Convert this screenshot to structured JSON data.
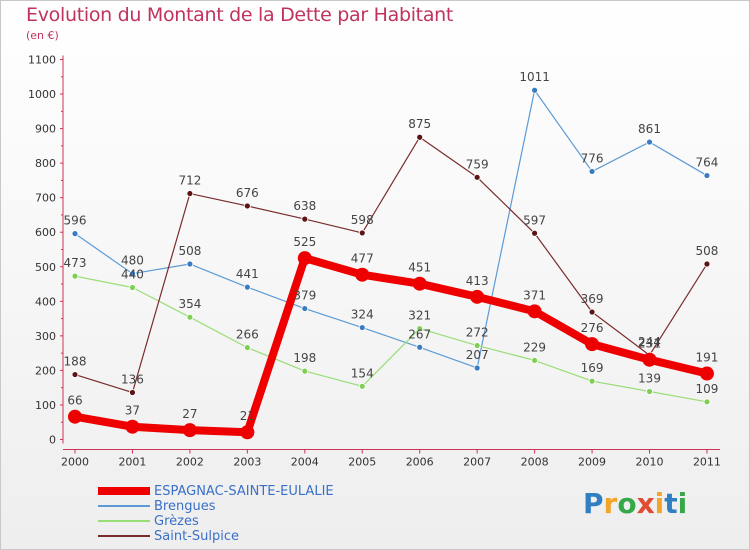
{
  "title": "Evolution du Montant de la Dette par Habitant",
  "subtitle": "(en €)",
  "logo": {
    "text": "Proxiti",
    "letters": [
      {
        "ch": "P",
        "color": "#2f7fc2"
      },
      {
        "ch": "r",
        "color": "#f2a629"
      },
      {
        "ch": "o",
        "color": "#37a84a"
      },
      {
        "ch": "x",
        "color": "#e14b33"
      },
      {
        "ch": "i",
        "color": "#f2a629"
      },
      {
        "ch": "t",
        "color": "#2f7fc2"
      },
      {
        "ch": "i",
        "color": "#37a84a"
      }
    ]
  },
  "chart_data": {
    "type": "line",
    "title": "Evolution du Montant de la Dette par Habitant",
    "ylabel": "(en €)",
    "ylim": [
      0,
      1100
    ],
    "yticks": [
      0,
      100,
      200,
      300,
      400,
      500,
      600,
      700,
      800,
      900,
      1000,
      1100
    ],
    "categories": [
      "2000",
      "2001",
      "2002",
      "2003",
      "2004",
      "2005",
      "2006",
      "2007",
      "2008",
      "2009",
      "2010",
      "2011"
    ],
    "grid": false,
    "legend_position": "bottom-left",
    "series": [
      {
        "name": "Brengues",
        "color": "#5b9bd5",
        "marker": "#3a7cc0",
        "width": 1.2,
        "values": [
          596,
          480,
          508,
          441,
          379,
          324,
          267,
          207,
          1011,
          776,
          861,
          764
        ]
      },
      {
        "name": "Grèzes",
        "color": "#99dd77",
        "marker": "#7fcf55",
        "width": 1.2,
        "values": [
          473,
          440,
          354,
          266,
          198,
          154,
          321,
          272,
          229,
          169,
          139,
          109
        ]
      },
      {
        "name": "Saint-Sulpice",
        "color": "#7a2c2c",
        "marker": "#5c1414",
        "width": 1.2,
        "values": [
          188,
          136,
          712,
          676,
          638,
          598,
          875,
          759,
          597,
          369,
          244,
          508
        ]
      },
      {
        "name": "ESPAGNAC-SAINTE-EULALIE",
        "color": "#ee0000",
        "marker": "#ee0000",
        "width": 8,
        "values": [
          66,
          37,
          27,
          21,
          525,
          477,
          451,
          413,
          371,
          276,
          231,
          191
        ]
      }
    ],
    "legend_order": [
      "ESPAGNAC-SAINTE-EULALIE",
      "Brengues",
      "Grèzes",
      "Saint-Sulpice"
    ],
    "data_label_strings": {
      "ESPAGNAC-SAINTE-EULALIE": [
        "66",
        "37",
        "27",
        "21",
        "525",
        "477",
        "451",
        "413",
        "371",
        "276",
        "231",
        "191"
      ],
      "Brengues": [
        "596",
        "480",
        "508",
        "441",
        "379",
        "324",
        "267",
        "207",
        "1011",
        "776",
        "861",
        "764"
      ],
      "Grèzes": [
        "473",
        "440",
        "354",
        "266",
        "198",
        "154",
        "321",
        "272",
        "229",
        "169",
        "139",
        "109"
      ],
      "Saint-Sulpice": [
        "188",
        "136",
        "712",
        "676",
        "638",
        "598",
        "875",
        "759",
        "597",
        "369",
        "244",
        "508"
      ]
    }
  }
}
